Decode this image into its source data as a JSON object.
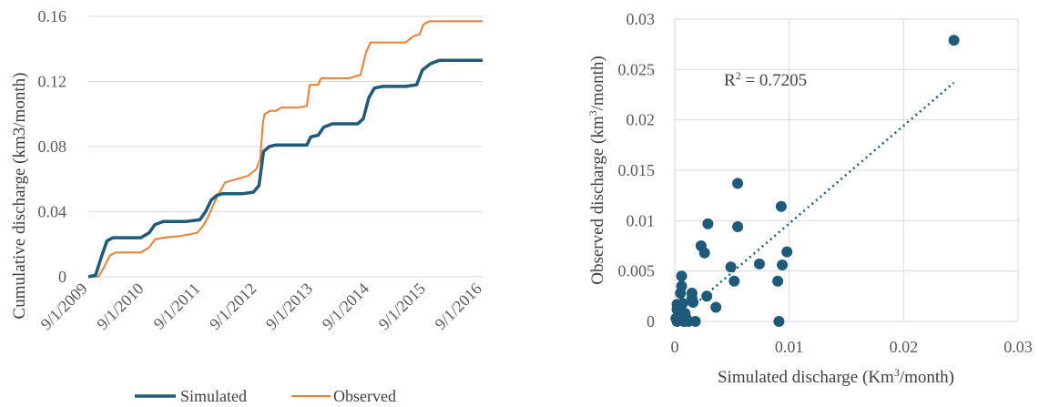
{
  "chart_data": [
    {
      "type": "line",
      "title": "",
      "ylabel": "Cumulative discharge (km3/month)",
      "xlabel": "",
      "ylim": [
        0,
        0.16
      ],
      "yticks": [
        "0",
        "0.04",
        "0.08",
        "0.12",
        "0.16"
      ],
      "xticks": [
        "9/1/2009",
        "9/1/2010",
        "9/1/2011",
        "9/1/2012",
        "9/1/2013",
        "9/1/2014",
        "9/1/2015",
        "9/1/2016"
      ],
      "grid": true,
      "legend_position": "bottom",
      "series": [
        {
          "name": "Simulated",
          "color": "#1f5a7a",
          "points": [
            [
              2009.67,
              0
            ],
            [
              2009.8,
              0.001
            ],
            [
              2009.9,
              0.012
            ],
            [
              2010.0,
              0.022
            ],
            [
              2010.1,
              0.024
            ],
            [
              2010.4,
              0.024
            ],
            [
              2010.6,
              0.024
            ],
            [
              2010.75,
              0.027
            ],
            [
              2010.85,
              0.032
            ],
            [
              2011.0,
              0.034
            ],
            [
              2011.4,
              0.034
            ],
            [
              2011.65,
              0.035
            ],
            [
              2011.75,
              0.04
            ],
            [
              2011.85,
              0.047
            ],
            [
              2011.95,
              0.05
            ],
            [
              2012.05,
              0.051
            ],
            [
              2012.4,
              0.051
            ],
            [
              2012.6,
              0.052
            ],
            [
              2012.7,
              0.056
            ],
            [
              2012.78,
              0.077
            ],
            [
              2012.88,
              0.08
            ],
            [
              2013.0,
              0.081
            ],
            [
              2013.4,
              0.081
            ],
            [
              2013.55,
              0.081
            ],
            [
              2013.62,
              0.086
            ],
            [
              2013.75,
              0.087
            ],
            [
              2013.85,
              0.092
            ],
            [
              2014.0,
              0.094
            ],
            [
              2014.3,
              0.094
            ],
            [
              2014.45,
              0.094
            ],
            [
              2014.55,
              0.097
            ],
            [
              2014.65,
              0.11
            ],
            [
              2014.75,
              0.116
            ],
            [
              2014.9,
              0.117
            ],
            [
              2015.3,
              0.117
            ],
            [
              2015.5,
              0.118
            ],
            [
              2015.6,
              0.127
            ],
            [
              2015.75,
              0.131
            ],
            [
              2015.9,
              0.133
            ],
            [
              2016.67,
              0.133
            ]
          ]
        },
        {
          "name": "Observed",
          "color": "#ed7d31",
          "points": [
            [
              2009.67,
              0
            ],
            [
              2009.85,
              0
            ],
            [
              2009.95,
              0.006
            ],
            [
              2010.05,
              0.013
            ],
            [
              2010.15,
              0.015
            ],
            [
              2010.6,
              0.015
            ],
            [
              2010.75,
              0.018
            ],
            [
              2010.85,
              0.023
            ],
            [
              2011.0,
              0.024
            ],
            [
              2011.3,
              0.025
            ],
            [
              2011.6,
              0.027
            ],
            [
              2011.7,
              0.031
            ],
            [
              2011.8,
              0.037
            ],
            [
              2011.9,
              0.045
            ],
            [
              2012.0,
              0.052
            ],
            [
              2012.1,
              0.058
            ],
            [
              2012.3,
              0.06
            ],
            [
              2012.5,
              0.062
            ],
            [
              2012.65,
              0.066
            ],
            [
              2012.72,
              0.072
            ],
            [
              2012.77,
              0.095
            ],
            [
              2012.8,
              0.1
            ],
            [
              2012.9,
              0.102
            ],
            [
              2013.0,
              0.102
            ],
            [
              2013.1,
              0.104
            ],
            [
              2013.4,
              0.104
            ],
            [
              2013.55,
              0.105
            ],
            [
              2013.6,
              0.118
            ],
            [
              2013.75,
              0.118
            ],
            [
              2013.8,
              0.122
            ],
            [
              2014.3,
              0.122
            ],
            [
              2014.5,
              0.124
            ],
            [
              2014.6,
              0.138
            ],
            [
              2014.68,
              0.144
            ],
            [
              2014.8,
              0.144
            ],
            [
              2015.3,
              0.144
            ],
            [
              2015.45,
              0.148
            ],
            [
              2015.55,
              0.149
            ],
            [
              2015.62,
              0.155
            ],
            [
              2015.72,
              0.157
            ],
            [
              2016.67,
              0.157
            ]
          ]
        }
      ]
    },
    {
      "type": "scatter",
      "title": "",
      "xlabel_base": "Simulated discharge (Km",
      "xlabel_sup": "3",
      "xlabel_end": "/month)",
      "ylabel_base": "Observed discharge (km",
      "ylabel_sup": "3",
      "ylabel_end": "/month)",
      "xlim": [
        0,
        0.03
      ],
      "ylim": [
        0,
        0.03
      ],
      "xticks": [
        "0",
        "0.01",
        "0.02",
        "0.03"
      ],
      "yticks": [
        "0",
        "0.005",
        "0.01",
        "0.015",
        "0.02",
        "0.025",
        "0.03"
      ],
      "grid": true,
      "marker_color": "#1f5a7a",
      "trendline": {
        "type": "linear",
        "style": "dotted",
        "from": [
          0.0,
          0.0
        ],
        "to": [
          0.0244,
          0.0237
        ]
      },
      "r2_text_base": "R",
      "r2_text_sup": "2",
      "r2_text_end": " = 0.7205",
      "points": [
        [
          0.0244,
          0.0279
        ],
        [
          0.0055,
          0.0137
        ],
        [
          0.0093,
          0.0114
        ],
        [
          0.0029,
          0.0097
        ],
        [
          0.0055,
          0.0094
        ],
        [
          0.0023,
          0.0075
        ],
        [
          0.0026,
          0.0068
        ],
        [
          0.0098,
          0.0069
        ],
        [
          0.0074,
          0.0057
        ],
        [
          0.0094,
          0.0056
        ],
        [
          0.0049,
          0.0054
        ],
        [
          0.0052,
          0.004
        ],
        [
          0.009,
          0.004
        ],
        [
          0.0036,
          0.0014
        ],
        [
          0.0028,
          0.0025
        ],
        [
          0.0006,
          0.0045
        ],
        [
          0.0006,
          0.0035
        ],
        [
          0.0005,
          0.0028
        ],
        [
          0.0015,
          0.0028
        ],
        [
          0.0016,
          0.0019
        ],
        [
          0.0015,
          0.0023
        ],
        [
          0.0007,
          0.0018
        ],
        [
          0.0002,
          0.0017
        ],
        [
          0.0002,
          0.0012
        ],
        [
          0.0005,
          0.0013
        ],
        [
          0.0009,
          0.0008
        ],
        [
          0.0003,
          0.0006
        ],
        [
          0.0001,
          0.0003
        ],
        [
          0.0004,
          0.0001
        ],
        [
          0.0002,
          0.0
        ],
        [
          0.0008,
          0.0
        ],
        [
          0.0012,
          0.0
        ],
        [
          0.0018,
          0.0
        ],
        [
          0.0091,
          0.0
        ],
        [
          0.0002,
          0.0004
        ],
        [
          0.001,
          0.0003
        ],
        [
          0.0004,
          0.0009
        ]
      ]
    }
  ]
}
